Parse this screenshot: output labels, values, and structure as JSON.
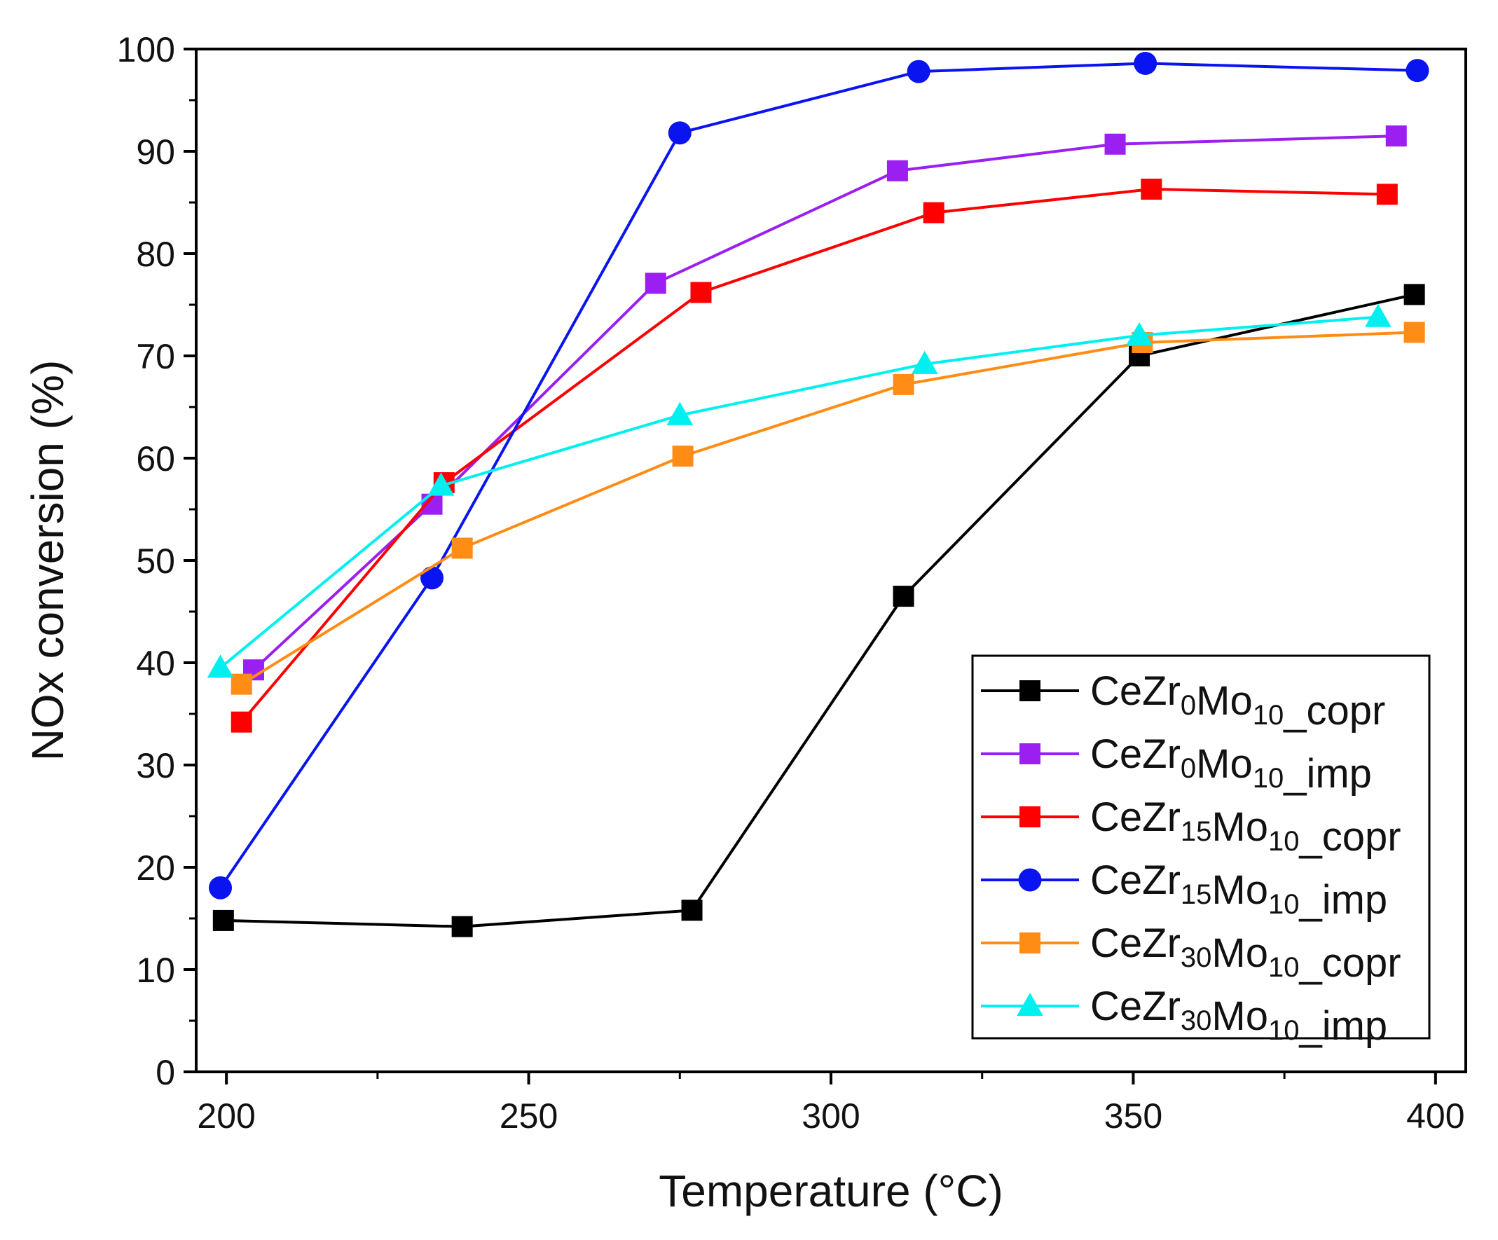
{
  "chart_data": {
    "type": "line",
    "title": "",
    "xlabel": "Temperature (°C)",
    "ylabel": "NOx conversion (%)",
    "xlim": [
      195,
      405
    ],
    "ylim": [
      0,
      100
    ],
    "xticks": [
      200,
      250,
      300,
      350,
      400
    ],
    "yticks": [
      0,
      10,
      20,
      30,
      40,
      50,
      60,
      70,
      80,
      90,
      100
    ],
    "grid": false,
    "legend_position": "bottom-right",
    "series": [
      {
        "name": "CeZr0Mo10_copr",
        "label_parts": [
          [
            "CeZr",
            ""
          ],
          [
            "0",
            "sub"
          ],
          [
            "Mo",
            ""
          ],
          [
            "10",
            "sub"
          ],
          [
            "_copr",
            ""
          ]
        ],
        "color": "#000000",
        "marker": "square",
        "x": [
          199.5,
          239,
          277,
          312,
          351,
          396.5
        ],
        "y": [
          14.8,
          14.2,
          15.8,
          46.5,
          70.0,
          76.0
        ]
      },
      {
        "name": "CeZr0Mo10_imp",
        "label_parts": [
          [
            "CeZr",
            ""
          ],
          [
            "0",
            "sub"
          ],
          [
            "Mo",
            ""
          ],
          [
            "10",
            "sub"
          ],
          [
            "_imp",
            ""
          ]
        ],
        "color": "#9b1ff0",
        "marker": "square",
        "x": [
          204.5,
          234,
          271,
          311,
          347,
          393.5
        ],
        "y": [
          39.3,
          55.5,
          77.1,
          88.1,
          90.7,
          91.5
        ]
      },
      {
        "name": "CeZr15Mo10_copr",
        "label_parts": [
          [
            "CeZr",
            ""
          ],
          [
            "15",
            "sub"
          ],
          [
            "Mo",
            ""
          ],
          [
            "10",
            "sub"
          ],
          [
            "_copr",
            ""
          ]
        ],
        "color": "#ff0000",
        "marker": "square",
        "x": [
          202.5,
          236,
          278.5,
          317,
          353,
          392
        ],
        "y": [
          34.2,
          57.6,
          76.2,
          84.0,
          86.3,
          85.8
        ]
      },
      {
        "name": "CeZr15Mo10_imp",
        "label_parts": [
          [
            "CeZr",
            ""
          ],
          [
            "15",
            "sub"
          ],
          [
            "Mo",
            ""
          ],
          [
            "10",
            "sub"
          ],
          [
            "_imp",
            ""
          ]
        ],
        "color": "#0a14f0",
        "marker": "circle",
        "x": [
          199,
          234,
          275,
          314.5,
          352,
          397
        ],
        "y": [
          18.0,
          48.3,
          91.8,
          97.8,
          98.6,
          97.9
        ]
      },
      {
        "name": "CeZr30Mo10_copr",
        "label_parts": [
          [
            "CeZr",
            ""
          ],
          [
            "30",
            "sub"
          ],
          [
            "Mo",
            ""
          ],
          [
            "10",
            "sub"
          ],
          [
            "_copr",
            ""
          ]
        ],
        "color": "#ff8c14",
        "marker": "square",
        "x": [
          202.5,
          239,
          275.5,
          312,
          351.5,
          396.5
        ],
        "y": [
          37.9,
          51.2,
          60.2,
          67.2,
          71.3,
          72.3
        ]
      },
      {
        "name": "CeZr30Mo10_imp",
        "label_parts": [
          [
            "CeZr",
            ""
          ],
          [
            "30",
            "sub"
          ],
          [
            "Mo",
            ""
          ],
          [
            "10",
            "sub"
          ],
          [
            "_imp",
            ""
          ]
        ],
        "color": "#00f0f0",
        "marker": "triangle",
        "x": [
          199,
          235.5,
          275,
          315.5,
          351,
          390.5
        ],
        "y": [
          39.5,
          57.3,
          64.2,
          69.2,
          72.0,
          73.8
        ]
      }
    ]
  }
}
